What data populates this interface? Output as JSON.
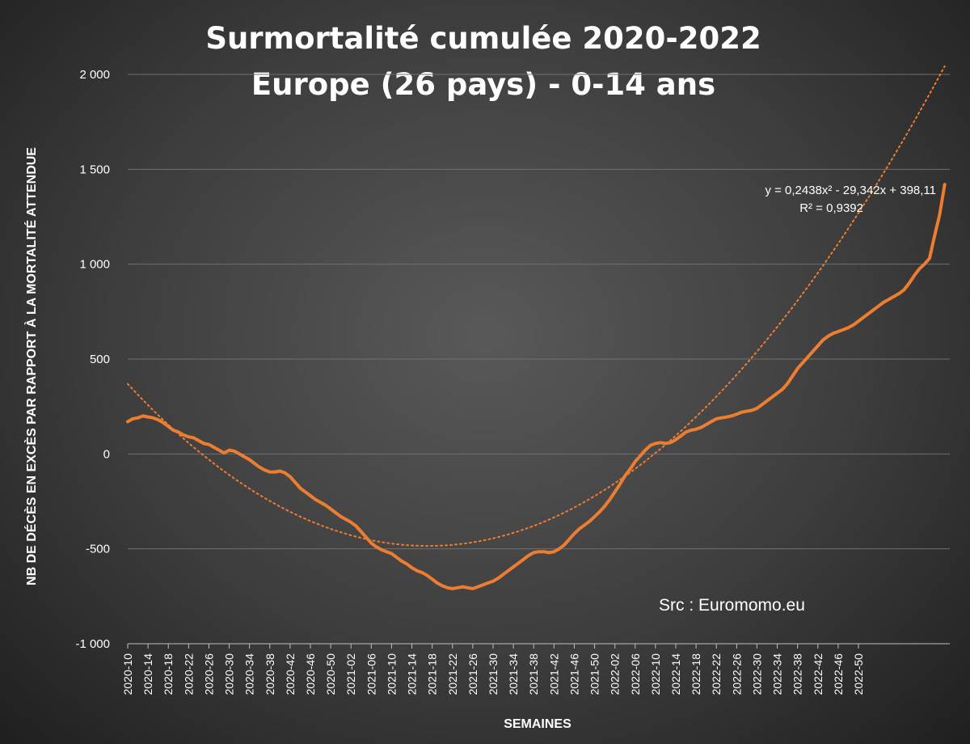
{
  "chart_data": {
    "type": "line",
    "title": "Surmortalité cumulée 2020-2022",
    "subtitle": "Europe (26 pays) - 0-14 ans",
    "xlabel": "SEMAINES",
    "ylabel": "NB DE DÉCÈS EN EXCÈS PAR RAPPORT À LA MORTALITÉ ATTENDUE",
    "ylim": [
      -1000,
      2000
    ],
    "y_ticks": [
      2000,
      1500,
      1000,
      500,
      0,
      -500,
      -1000
    ],
    "y_tick_labels": [
      "2 000",
      "1 500",
      "1 000",
      "500",
      "0",
      "-500",
      "-1 000"
    ],
    "x_tick_labels": [
      "2020-10",
      "2020-14",
      "2020-18",
      "2020-22",
      "2020-26",
      "2020-30",
      "2020-34",
      "2020-38",
      "2020-42",
      "2020-46",
      "2020-50",
      "2021-02",
      "2021-06",
      "2021-10",
      "2021-14",
      "2021-18",
      "2021-22",
      "2021-26",
      "2021-30",
      "2021-34",
      "2021-38",
      "2021-42",
      "2021-46",
      "2021-50",
      "2022-02",
      "2022-06",
      "2022-10",
      "2022-14",
      "2022-18",
      "2022-22",
      "2022-26",
      "2022-30",
      "2022-34",
      "2022-38",
      "2022-42",
      "2022-46",
      "2022-50"
    ],
    "grid": true,
    "legend": "none",
    "series": [
      {
        "color": "#ED7D31",
        "x_start": "2020-10",
        "x_step_weeks": 1,
        "values": [
          170,
          185,
          190,
          200,
          195,
          190,
          180,
          165,
          145,
          125,
          115,
          100,
          90,
          85,
          70,
          55,
          50,
          35,
          20,
          5,
          20,
          15,
          0,
          -15,
          -30,
          -50,
          -70,
          -85,
          -95,
          -95,
          -90,
          -100,
          -120,
          -150,
          -180,
          -200,
          -220,
          -240,
          -255,
          -270,
          -290,
          -310,
          -330,
          -345,
          -360,
          -380,
          -410,
          -440,
          -470,
          -490,
          -505,
          -515,
          -525,
          -545,
          -565,
          -580,
          -600,
          -615,
          -625,
          -640,
          -660,
          -680,
          -695,
          -705,
          -710,
          -705,
          -700,
          -705,
          -710,
          -700,
          -690,
          -680,
          -670,
          -655,
          -635,
          -615,
          -595,
          -575,
          -555,
          -535,
          -520,
          -515,
          -515,
          -520,
          -515,
          -500,
          -480,
          -450,
          -420,
          -395,
          -375,
          -355,
          -330,
          -305,
          -275,
          -240,
          -200,
          -160,
          -115,
          -80,
          -40,
          -10,
          20,
          45,
          55,
          60,
          55,
          60,
          75,
          95,
          115,
          125,
          130,
          140,
          155,
          170,
          185,
          190,
          195,
          200,
          210,
          220,
          225,
          230,
          240,
          260,
          280,
          300,
          320,
          340,
          370,
          410,
          450,
          480,
          510,
          540,
          570,
          600,
          620,
          635,
          645,
          655,
          665,
          680,
          700,
          720,
          740,
          760,
          780,
          800,
          815,
          830,
          845,
          865,
          900,
          940,
          975,
          1000,
          1030,
          1150,
          1260,
          1420
        ]
      }
    ],
    "trendline": {
      "type": "polynomial",
      "order": 2,
      "color": "#ED7D31",
      "coefficients": {
        "a": 0.2438,
        "b": -29.342,
        "c": 398.11
      },
      "equation_label": "y = 0,2438x² - 29,342x + 398,11",
      "r2_label": "R² = 0,9392"
    },
    "annotations": [
      "Src : Euromomo.eu"
    ]
  }
}
